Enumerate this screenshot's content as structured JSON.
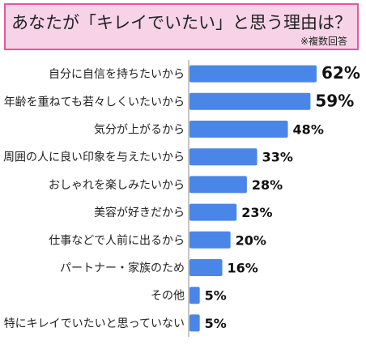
{
  "title": "あなたが「キレイでいたい」と思う理由は？",
  "note": "※複数回答",
  "colors": {
    "bar": "#4a86e8",
    "title_bg": "#f7d3e7",
    "title_border": "#e8569e",
    "axis": "#888888"
  },
  "chart_data": {
    "type": "bar",
    "orientation": "horizontal",
    "title": "あなたが「キレイでいたい」と思う理由は？",
    "categories": [
      "自分に自信を持ちたいから",
      "年齢を重ねても若々しくいたいから",
      "気分が上がるから",
      "周囲の人に良い印象を与えたいから",
      "おしゃれを楽しみたいから",
      "美容が好きだから",
      "仕事などで人前に出るから",
      "パートナー・家族のため",
      "その他",
      "特にキレイでいたいと思っていない"
    ],
    "values": [
      62,
      59,
      48,
      33,
      28,
      23,
      20,
      16,
      5,
      5
    ],
    "value_labels": [
      "62%",
      "59%",
      "48%",
      "33%",
      "28%",
      "23%",
      "20%",
      "16%",
      "5%",
      "5%"
    ],
    "unit": "%",
    "xlim": [
      0,
      62
    ],
    "grid": false
  }
}
